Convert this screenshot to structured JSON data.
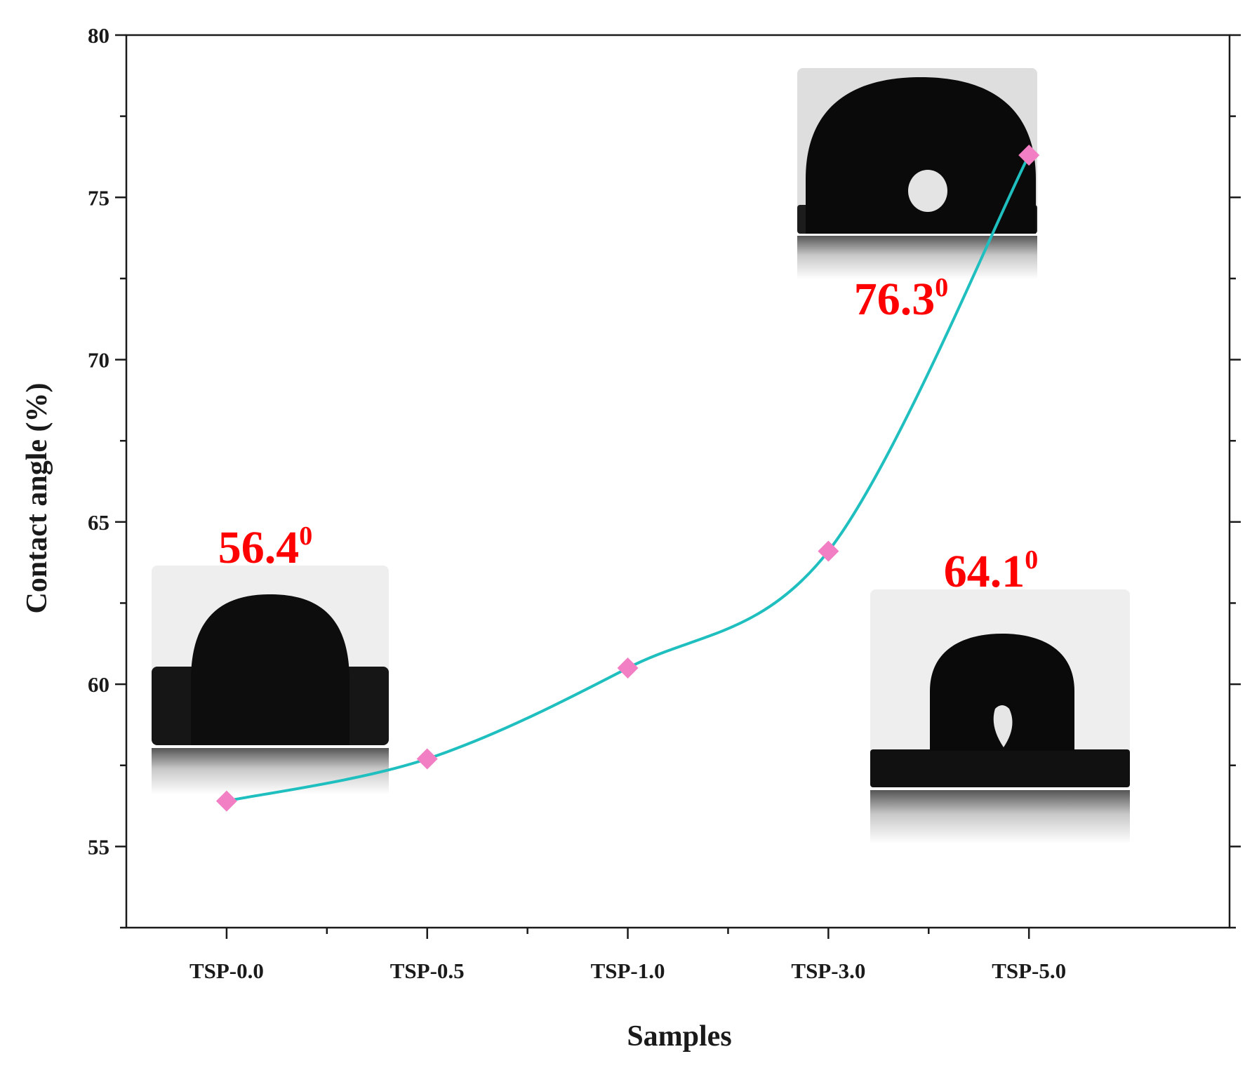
{
  "chart_data": {
    "type": "line",
    "smooth": true,
    "categories": [
      "TSP-0.0",
      "TSP-0.5",
      "TSP-1.0",
      "TSP-3.0",
      "TSP-5.0"
    ],
    "series": [
      {
        "values": [
          56.4,
          57.7,
          60.5,
          64.1,
          76.3
        ]
      }
    ],
    "xlabel": "Samples",
    "ylabel": "Contact angle (%)",
    "ylim": [
      52.5,
      80
    ],
    "yticks": [
      55,
      60,
      65,
      70,
      75,
      80
    ],
    "marker": "diamond",
    "annotations": [
      {
        "text": "56.4",
        "sup": "0",
        "category": "TSP-0.0"
      },
      {
        "text": "64.1",
        "sup": "0",
        "category": "TSP-3.0"
      },
      {
        "text": "76.3",
        "sup": "0",
        "category": "TSP-5.0"
      }
    ],
    "colors": {
      "line": "#1fbfbf",
      "marker": "#f27ec3",
      "annotation": "#ff0000",
      "axis": "#1a1a1a"
    }
  }
}
